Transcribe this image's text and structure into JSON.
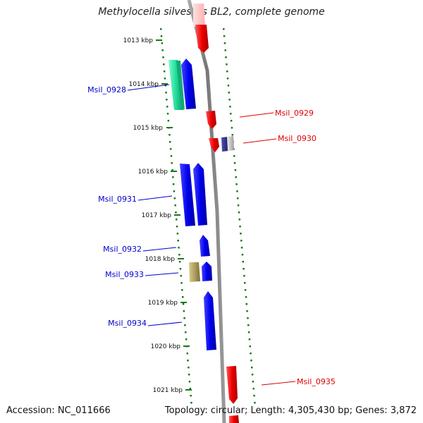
{
  "title": "Methylocella silvestris BL2, complete genome",
  "footer": {
    "accession": "Accession: NC_011666",
    "summary": "Topology: circular; Length: 4,305,430 bp; Genes: 3,872"
  },
  "scale_ticks": [
    "1013 kbp",
    "1014 kbp",
    "1015 kbp",
    "1016 kbp",
    "1017 kbp",
    "1018 kbp",
    "1019 kbp",
    "1020 kbp",
    "1021 kbp"
  ],
  "genes": [
    {
      "label": "Msil_0928",
      "strand": "-",
      "color": "#0000cc"
    },
    {
      "label": "Msil_0929",
      "strand": "+",
      "color": "#dd0000"
    },
    {
      "label": "Msil_0930",
      "strand": "+",
      "color": "#dd0000"
    },
    {
      "label": "Msil_0931",
      "strand": "-",
      "color": "#0000cc"
    },
    {
      "label": "Msil_0932",
      "strand": "-",
      "color": "#0000cc"
    },
    {
      "label": "Msil_0933",
      "strand": "-",
      "color": "#0000cc"
    },
    {
      "label": "Msil_0934",
      "strand": "-",
      "color": "#0000cc"
    },
    {
      "label": "Msil_0935",
      "strand": "+",
      "color": "#dd0000"
    }
  ],
  "colors": {
    "plus_strand": "#ee0000",
    "minus_strand": "#0000ee",
    "backbone": "#888888",
    "tick": "#1a7a1a",
    "feature_green": "#22dd99",
    "feature_khaki": "#a89a55",
    "feature_navy": "#2a2a80"
  }
}
